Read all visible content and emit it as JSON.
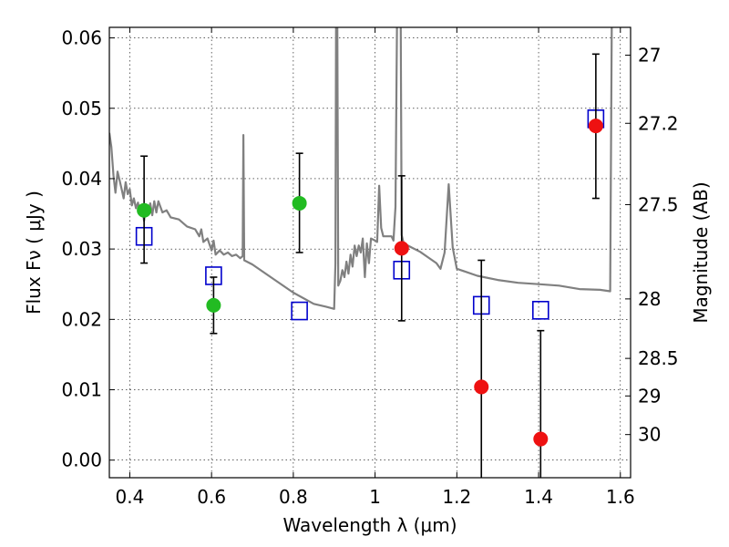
{
  "chart_data": {
    "type": "scatter",
    "xlabel": "Wavelength  λ (μm)",
    "ylabel": "Flux  Fν  ( μJy )",
    "y2label": "Magnitude (AB)",
    "xlim": [
      0.35,
      1.625
    ],
    "ylim": [
      -0.0025,
      0.0615
    ],
    "grid": true,
    "x_ticks": [
      0.4,
      0.6,
      0.8,
      1.0,
      1.2,
      1.4,
      1.6
    ],
    "x_tick_labels": [
      "0.4",
      "0.6",
      "0.8",
      "1",
      "1.2",
      "1.4",
      "1.6"
    ],
    "y_ticks": [
      0.0,
      0.01,
      0.02,
      0.03,
      0.04,
      0.05,
      0.06
    ],
    "y_tick_labels": [
      "0.00",
      "0.01",
      "0.02",
      "0.03",
      "0.04",
      "0.05",
      "0.06"
    ],
    "y2_ticks": [
      {
        "label": "27",
        "mag": 27.0
      },
      {
        "label": "27.2",
        "mag": 27.2
      },
      {
        "label": "27.5",
        "mag": 27.5
      },
      {
        "label": "28",
        "mag": 28.0
      },
      {
        "label": "28.5",
        "mag": 28.5
      },
      {
        "label": "29",
        "mag": 29.0
      },
      {
        "label": "30",
        "mag": 30.0
      }
    ],
    "series": [
      {
        "kind": "line",
        "color": "#808080",
        "points": [
          [
            0.35,
            0.0465
          ],
          [
            0.355,
            0.0445
          ],
          [
            0.36,
            0.0405
          ],
          [
            0.365,
            0.038
          ],
          [
            0.37,
            0.041
          ],
          [
            0.375,
            0.0398
          ],
          [
            0.38,
            0.0385
          ],
          [
            0.385,
            0.0372
          ],
          [
            0.39,
            0.0395
          ],
          [
            0.395,
            0.0378
          ],
          [
            0.4,
            0.0385
          ],
          [
            0.405,
            0.0362
          ],
          [
            0.41,
            0.0372
          ],
          [
            0.415,
            0.0358
          ],
          [
            0.42,
            0.0366
          ],
          [
            0.425,
            0.0352
          ],
          [
            0.43,
            0.036
          ],
          [
            0.435,
            0.034
          ],
          [
            0.44,
            0.0363
          ],
          [
            0.445,
            0.0355
          ],
          [
            0.45,
            0.0365
          ],
          [
            0.455,
            0.0348
          ],
          [
            0.46,
            0.0368
          ],
          [
            0.465,
            0.0352
          ],
          [
            0.47,
            0.0368
          ],
          [
            0.48,
            0.0352
          ],
          [
            0.49,
            0.0355
          ],
          [
            0.5,
            0.0345
          ],
          [
            0.52,
            0.0342
          ],
          [
            0.54,
            0.0332
          ],
          [
            0.56,
            0.0328
          ],
          [
            0.57,
            0.0318
          ],
          [
            0.575,
            0.0328
          ],
          [
            0.58,
            0.031
          ],
          [
            0.59,
            0.0315
          ],
          [
            0.6,
            0.0298
          ],
          [
            0.605,
            0.0312
          ],
          [
            0.61,
            0.0292
          ],
          [
            0.62,
            0.0298
          ],
          [
            0.63,
            0.0292
          ],
          [
            0.64,
            0.0295
          ],
          [
            0.65,
            0.029
          ],
          [
            0.66,
            0.0292
          ],
          [
            0.67,
            0.0287
          ],
          [
            0.676,
            0.029
          ],
          [
            0.678,
            0.0462
          ],
          [
            0.68,
            0.0284
          ],
          [
            0.7,
            0.0278
          ],
          [
            0.75,
            0.0258
          ],
          [
            0.8,
            0.0238
          ],
          [
            0.85,
            0.0222
          ],
          [
            0.88,
            0.0218
          ],
          [
            0.9,
            0.0215
          ],
          [
            0.903,
            0.028
          ],
          [
            0.905,
            0.072
          ],
          [
            0.907,
            0.072
          ],
          [
            0.91,
            0.0248
          ],
          [
            0.915,
            0.0255
          ],
          [
            0.92,
            0.027
          ],
          [
            0.925,
            0.026
          ],
          [
            0.93,
            0.0282
          ],
          [
            0.935,
            0.0265
          ],
          [
            0.94,
            0.0292
          ],
          [
            0.945,
            0.0275
          ],
          [
            0.95,
            0.0305
          ],
          [
            0.955,
            0.029
          ],
          [
            0.96,
            0.0305
          ],
          [
            0.965,
            0.0295
          ],
          [
            0.97,
            0.0315
          ],
          [
            0.975,
            0.026
          ],
          [
            0.98,
            0.0308
          ],
          [
            0.985,
            0.028
          ],
          [
            0.99,
            0.0315
          ],
          [
            1.0,
            0.0312
          ],
          [
            1.005,
            0.031
          ],
          [
            1.01,
            0.039
          ],
          [
            1.015,
            0.033
          ],
          [
            1.02,
            0.0318
          ],
          [
            1.04,
            0.0318
          ],
          [
            1.045,
            0.0312
          ],
          [
            1.05,
            0.036
          ],
          [
            1.055,
            0.072
          ],
          [
            1.062,
            0.072
          ],
          [
            1.065,
            0.032
          ],
          [
            1.07,
            0.0308
          ],
          [
            1.09,
            0.0302
          ],
          [
            1.11,
            0.0296
          ],
          [
            1.13,
            0.0288
          ],
          [
            1.15,
            0.028
          ],
          [
            1.16,
            0.0272
          ],
          [
            1.17,
            0.0295
          ],
          [
            1.18,
            0.0392
          ],
          [
            1.19,
            0.0302
          ],
          [
            1.2,
            0.0272
          ],
          [
            1.25,
            0.0262
          ],
          [
            1.3,
            0.0256
          ],
          [
            1.35,
            0.0252
          ],
          [
            1.4,
            0.025
          ],
          [
            1.45,
            0.0248
          ],
          [
            1.48,
            0.0245
          ],
          [
            1.5,
            0.0243
          ],
          [
            1.55,
            0.0242
          ],
          [
            1.575,
            0.024
          ],
          [
            1.58,
            0.072
          ]
        ]
      },
      {
        "kind": "model-markers",
        "marker": "square",
        "color": "#0000cc",
        "points": [
          [
            0.435,
            0.0318
          ],
          [
            0.605,
            0.0262
          ],
          [
            0.815,
            0.0212
          ],
          [
            1.065,
            0.027
          ],
          [
            1.26,
            0.022
          ],
          [
            1.405,
            0.0213
          ],
          [
            1.54,
            0.0485
          ]
        ]
      },
      {
        "kind": "errorbars",
        "color": "#000000",
        "bars": [
          {
            "x": 0.435,
            "low": 0.028,
            "high": 0.0432
          },
          {
            "x": 0.605,
            "low": 0.018,
            "high": 0.026
          },
          {
            "x": 0.815,
            "low": 0.0295,
            "high": 0.0436
          },
          {
            "x": 1.065,
            "low": 0.0198,
            "high": 0.0404
          },
          {
            "x": 1.26,
            "low": -0.003,
            "high": 0.0284
          },
          {
            "x": 1.405,
            "low": -0.003,
            "high": 0.0184
          },
          {
            "x": 1.54,
            "low": 0.0372,
            "high": 0.0577
          }
        ]
      },
      {
        "kind": "observed",
        "marker": "circle",
        "color": "#22bb22",
        "points": [
          [
            0.435,
            0.0355
          ],
          [
            0.605,
            0.022
          ],
          [
            0.815,
            0.0365
          ]
        ]
      },
      {
        "kind": "observed",
        "marker": "circle",
        "color": "#ee1111",
        "points": [
          [
            1.065,
            0.0301
          ],
          [
            1.26,
            0.0104
          ],
          [
            1.405,
            0.003
          ],
          [
            1.54,
            0.0475
          ]
        ]
      }
    ]
  }
}
